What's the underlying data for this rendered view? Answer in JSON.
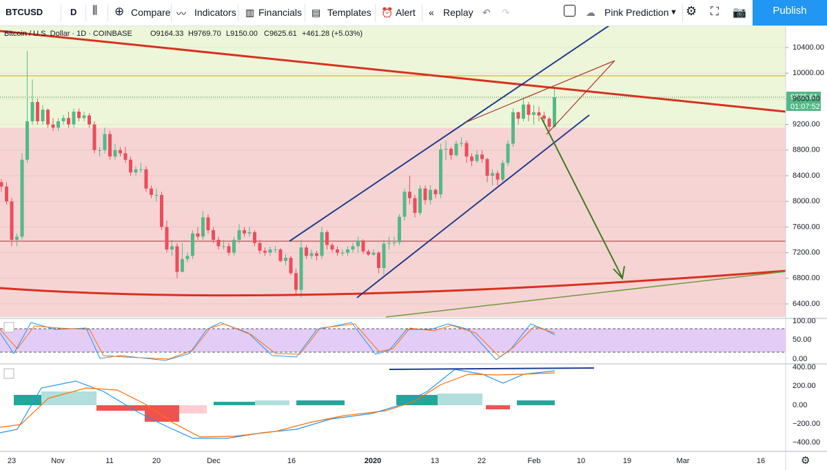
{
  "toolbar": {
    "symbol": "BTCUSD",
    "interval": "D",
    "compare": "Compare",
    "indicators": "Indicators",
    "financials": "Financials",
    "templates": "Templates",
    "alert": "Alert",
    "replay": "Replay",
    "layout_name": "Pink Prediction",
    "publish": "Publish"
  },
  "legend": {
    "name": "Bitcoin / U.S. Dollar · 1D · COINBASE",
    "open": "O9164.33",
    "high": "H9769.70",
    "low": "L9150.00",
    "close": "C9625.61",
    "change": "+461.28 (+5.03%)"
  },
  "price_tag": {
    "price": "9625.61",
    "countdown": "01:07:52"
  },
  "chart_data": {
    "type": "candlestick",
    "ylim": [
      6196,
      10733
    ],
    "yticks": [
      {
        "value": 10400,
        "label": "10400.00"
      },
      {
        "value": 10000,
        "label": "10000.00"
      },
      {
        "value": 9600,
        "label": "9600.00"
      },
      {
        "value": 9200,
        "label": "9200.00"
      },
      {
        "value": 8800,
        "label": "8800.00"
      },
      {
        "value": 8400,
        "label": "8400.00"
      },
      {
        "value": 8000,
        "label": "8000.00"
      },
      {
        "value": 7600,
        "label": "7600.00"
      },
      {
        "value": 7200,
        "label": "7200.00"
      },
      {
        "value": 6800,
        "label": "6800.00"
      },
      {
        "value": 6400,
        "label": "6400.00"
      }
    ],
    "x_labels": [
      "23",
      "Nov",
      "11",
      "20",
      "Dec",
      "16",
      "2020",
      "13",
      "22",
      "Feb",
      "10",
      "19",
      "Mar",
      "16"
    ],
    "up_color": "#53b987",
    "down_color": "#eb4d5c",
    "open": [
      8300,
      8230,
      8000,
      7400,
      7450,
      8650,
      9250,
      9550,
      9250,
      9430,
      9200,
      9150,
      9250,
      9300,
      9200,
      9400,
      9300,
      9340,
      9200,
      8800,
      8800,
      9050,
      8700,
      8800,
      8750,
      8650,
      8450,
      8500,
      8500,
      8200,
      8100,
      8100,
      7600,
      7250,
      7300,
      6900,
      7100,
      7150,
      7500,
      7450,
      7750,
      7550,
      7400,
      7300,
      7300,
      7200,
      7400,
      7550,
      7500,
      7520,
      7350,
      7230,
      7200,
      7250,
      7250,
      7070,
      7120,
      6880,
      6620,
      7280,
      7150,
      7190,
      7150,
      7520,
      7320,
      7250,
      7200,
      7200,
      7250,
      7300,
      7390,
      7220,
      7170,
      7200,
      6960,
      7340,
      7350,
      7360,
      7760,
      8150,
      8050,
      7820,
      8200,
      8020,
      8180,
      8110,
      8810,
      8820,
      8720,
      8900,
      8910,
      8700,
      8630,
      8730,
      8660,
      8400,
      8440,
      8340,
      8600,
      8900,
      9390,
      9290,
      9510,
      9350,
      9390,
      9340,
      9290,
      9164.33
    ],
    "high": [
      8350,
      8300,
      8050,
      7500,
      8750,
      10350,
      9900,
      9600,
      9500,
      9450,
      9300,
      9300,
      9350,
      9400,
      9450,
      9450,
      9400,
      9380,
      9250,
      8850,
      9150,
      9100,
      8900,
      8850,
      8850,
      8700,
      8550,
      8600,
      8550,
      8250,
      8200,
      8150,
      7700,
      7400,
      7350,
      7350,
      7200,
      7550,
      7600,
      7850,
      7800,
      7600,
      7450,
      7400,
      7350,
      7450,
      7650,
      7600,
      7600,
      7550,
      7400,
      7280,
      7300,
      7300,
      7270,
      7180,
      7150,
      6950,
      7400,
      7320,
      7250,
      7230,
      7600,
      7550,
      7350,
      7300,
      7250,
      7300,
      7350,
      7450,
      7410,
      7250,
      7250,
      7220,
      7400,
      7450,
      7450,
      7800,
      8200,
      8400,
      8100,
      8250,
      8250,
      8250,
      8200,
      8900,
      8950,
      8850,
      8950,
      9000,
      8950,
      8750,
      8800,
      8800,
      8680,
      8500,
      8480,
      8650,
      8950,
      9450,
      9400,
      9600,
      9550,
      9500,
      9480,
      9400,
      9320,
      9769.7
    ],
    "low": [
      8150,
      7950,
      7300,
      7300,
      7400,
      8600,
      9200,
      9200,
      9200,
      9150,
      9100,
      9100,
      9200,
      9150,
      9150,
      9250,
      9250,
      9150,
      8750,
      8700,
      8750,
      8650,
      8650,
      8700,
      8600,
      8400,
      8400,
      8450,
      8150,
      8050,
      8000,
      7550,
      7200,
      7150,
      6800,
      6900,
      7050,
      7100,
      7400,
      7400,
      7500,
      7350,
      7250,
      7250,
      7150,
      7150,
      7350,
      7450,
      7450,
      7300,
      7180,
      7150,
      7150,
      7200,
      7050,
      7000,
      6850,
      6550,
      6500,
      7100,
      7100,
      7080,
      7100,
      7250,
      7200,
      7150,
      7150,
      7150,
      7200,
      7200,
      7180,
      7150,
      7150,
      6880,
      6850,
      7250,
      7300,
      7320,
      7700,
      7950,
      7750,
      7780,
      7950,
      7950,
      8050,
      8050,
      8650,
      8650,
      8700,
      8850,
      8600,
      8550,
      8600,
      8600,
      8300,
      8250,
      8250,
      8300,
      8550,
      8850,
      9200,
      9250,
      9250,
      9200,
      9250,
      9220,
      9100,
      9150.0
    ],
    "close": [
      8230,
      8000,
      7400,
      7450,
      8650,
      9250,
      9550,
      9250,
      9430,
      9200,
      9150,
      9250,
      9300,
      9200,
      9400,
      9300,
      9340,
      9200,
      8800,
      8800,
      9050,
      8700,
      8800,
      8750,
      8650,
      8450,
      8500,
      8500,
      8200,
      8100,
      8100,
      7600,
      7250,
      7300,
      6900,
      7100,
      7150,
      7500,
      7450,
      7750,
      7550,
      7400,
      7300,
      7300,
      7200,
      7400,
      7550,
      7500,
      7520,
      7350,
      7230,
      7200,
      7250,
      7250,
      7070,
      7120,
      6880,
      6620,
      7280,
      7150,
      7190,
      7150,
      7520,
      7320,
      7250,
      7200,
      7200,
      7250,
      7300,
      7390,
      7220,
      7170,
      7200,
      6960,
      7340,
      7350,
      7360,
      7760,
      8150,
      8050,
      7820,
      8200,
      8020,
      8180,
      8110,
      8810,
      8820,
      8720,
      8900,
      8910,
      8700,
      8630,
      8730,
      8660,
      8400,
      8440,
      8340,
      8600,
      8900,
      9390,
      9290,
      9510,
      9350,
      9390,
      9340,
      9290,
      9164.33,
      9625.61
    ]
  },
  "stoch_axis": [
    "100.00",
    "50.00",
    "0.00"
  ],
  "macd_axis": [
    "400.00",
    "200.00",
    "0.00",
    "−200.00",
    "−400.00"
  ]
}
